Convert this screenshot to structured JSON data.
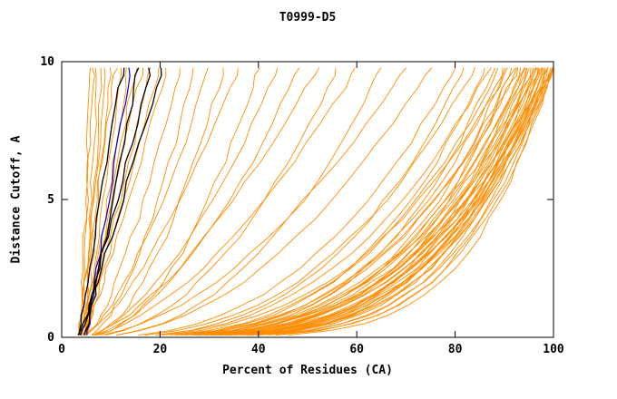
{
  "chart_data": {
    "type": "line",
    "title": "T0999-D5",
    "xlabel": "Percent of Residues (CA)",
    "ylabel": "Distance Cutoff, A",
    "xlim": [
      0,
      100
    ],
    "ylim": [
      0,
      10
    ],
    "x_ticks": [
      0,
      20,
      40,
      60,
      80,
      100
    ],
    "y_ticks": [
      0,
      5,
      10
    ],
    "grid": false,
    "legend": "none",
    "colors": {
      "orange": "#ff8c00",
      "black": "#000000",
      "blue": "#0000cd"
    },
    "seed": 11,
    "jitter": 0.4,
    "y_levels": [
      0.08,
      0.25,
      0.5,
      0.8,
      1.15,
      1.55,
      2,
      2.5,
      3.05,
      3.65,
      4.3,
      4.95,
      5.65,
      6.35,
      7.05,
      7.75,
      8.45,
      9.05,
      9.5,
      9.78
    ],
    "curve_model": {
      "description": "x(y) = x_start + (x_at_top - x_start) * (y/ymax)^p ; each curve entry is [x_at_top, p]",
      "x_start_range": [
        3.2,
        5.2
      ]
    },
    "groups": [
      {
        "name": "model-curve-orange",
        "color": "orange",
        "stroke_width": 0.9,
        "curves": [
          [
            5.8,
            1.1
          ],
          [
            6.5,
            0.95
          ],
          [
            7.2,
            1.05
          ],
          [
            8,
            0.9
          ],
          [
            9,
            1
          ],
          [
            10,
            0.95
          ],
          [
            11,
            1.05
          ],
          [
            12.2,
            0.9
          ],
          [
            13.5,
            1
          ],
          [
            15,
            0.95
          ],
          [
            16.5,
            1.05
          ],
          [
            18,
            0.9
          ],
          [
            19.8,
            1
          ],
          [
            21.5,
            0.95
          ],
          [
            24,
            0.7
          ],
          [
            27,
            0.6
          ],
          [
            30,
            0.65
          ],
          [
            33,
            0.55
          ],
          [
            36,
            0.7
          ],
          [
            40,
            0.5
          ],
          [
            44,
            0.6
          ],
          [
            48,
            0.55
          ],
          [
            52,
            0.65
          ],
          [
            56,
            0.5
          ],
          [
            60,
            0.6
          ],
          [
            65,
            0.45
          ],
          [
            70,
            0.55
          ],
          [
            75,
            0.5
          ],
          [
            80,
            0.4
          ],
          [
            82,
            0.35
          ],
          [
            84,
            0.38
          ],
          [
            86,
            0.3
          ],
          [
            87,
            0.36
          ],
          [
            88,
            0.28
          ],
          [
            89,
            0.33
          ],
          [
            90,
            0.3
          ],
          [
            90.5,
            0.26
          ],
          [
            91,
            0.35
          ],
          [
            91.5,
            0.24
          ],
          [
            92,
            0.3
          ],
          [
            92.5,
            0.27
          ],
          [
            93,
            0.32
          ],
          [
            93.5,
            0.22
          ],
          [
            94,
            0.28
          ],
          [
            94.3,
            0.25
          ],
          [
            94.6,
            0.3
          ],
          [
            95,
            0.2
          ],
          [
            95.3,
            0.26
          ],
          [
            95.6,
            0.23
          ],
          [
            96,
            0.3
          ],
          [
            96.2,
            0.21
          ],
          [
            96.5,
            0.27
          ],
          [
            96.8,
            0.24
          ],
          [
            97,
            0.2
          ],
          [
            97.2,
            0.29
          ],
          [
            97.4,
            0.22
          ],
          [
            97.6,
            0.26
          ],
          [
            97.8,
            0.19
          ],
          [
            98,
            0.24
          ],
          [
            98.2,
            0.28
          ],
          [
            98.4,
            0.21
          ],
          [
            98.6,
            0.25
          ],
          [
            98.8,
            0.18
          ],
          [
            99,
            0.23
          ],
          [
            99.1,
            0.27
          ],
          [
            99.3,
            0.2
          ],
          [
            99.5,
            0.24
          ],
          [
            99.6,
            0.17
          ],
          [
            99.8,
            0.22
          ],
          [
            99.9,
            0.26
          ],
          [
            100,
            0.19
          ],
          [
            100,
            0.24
          ],
          [
            100,
            0.3
          ]
        ]
      },
      {
        "name": "highlight-curve-blue",
        "color": "blue",
        "stroke_width": 1.2,
        "curves": [
          [
            14,
            1
          ]
        ]
      },
      {
        "name": "reference-curve-black",
        "color": "black",
        "stroke_width": 1.3,
        "curves": [
          [
            12.5,
            1.05
          ],
          [
            15.5,
            0.9
          ],
          [
            18,
            1
          ],
          [
            20.5,
            0.95
          ]
        ]
      }
    ]
  }
}
